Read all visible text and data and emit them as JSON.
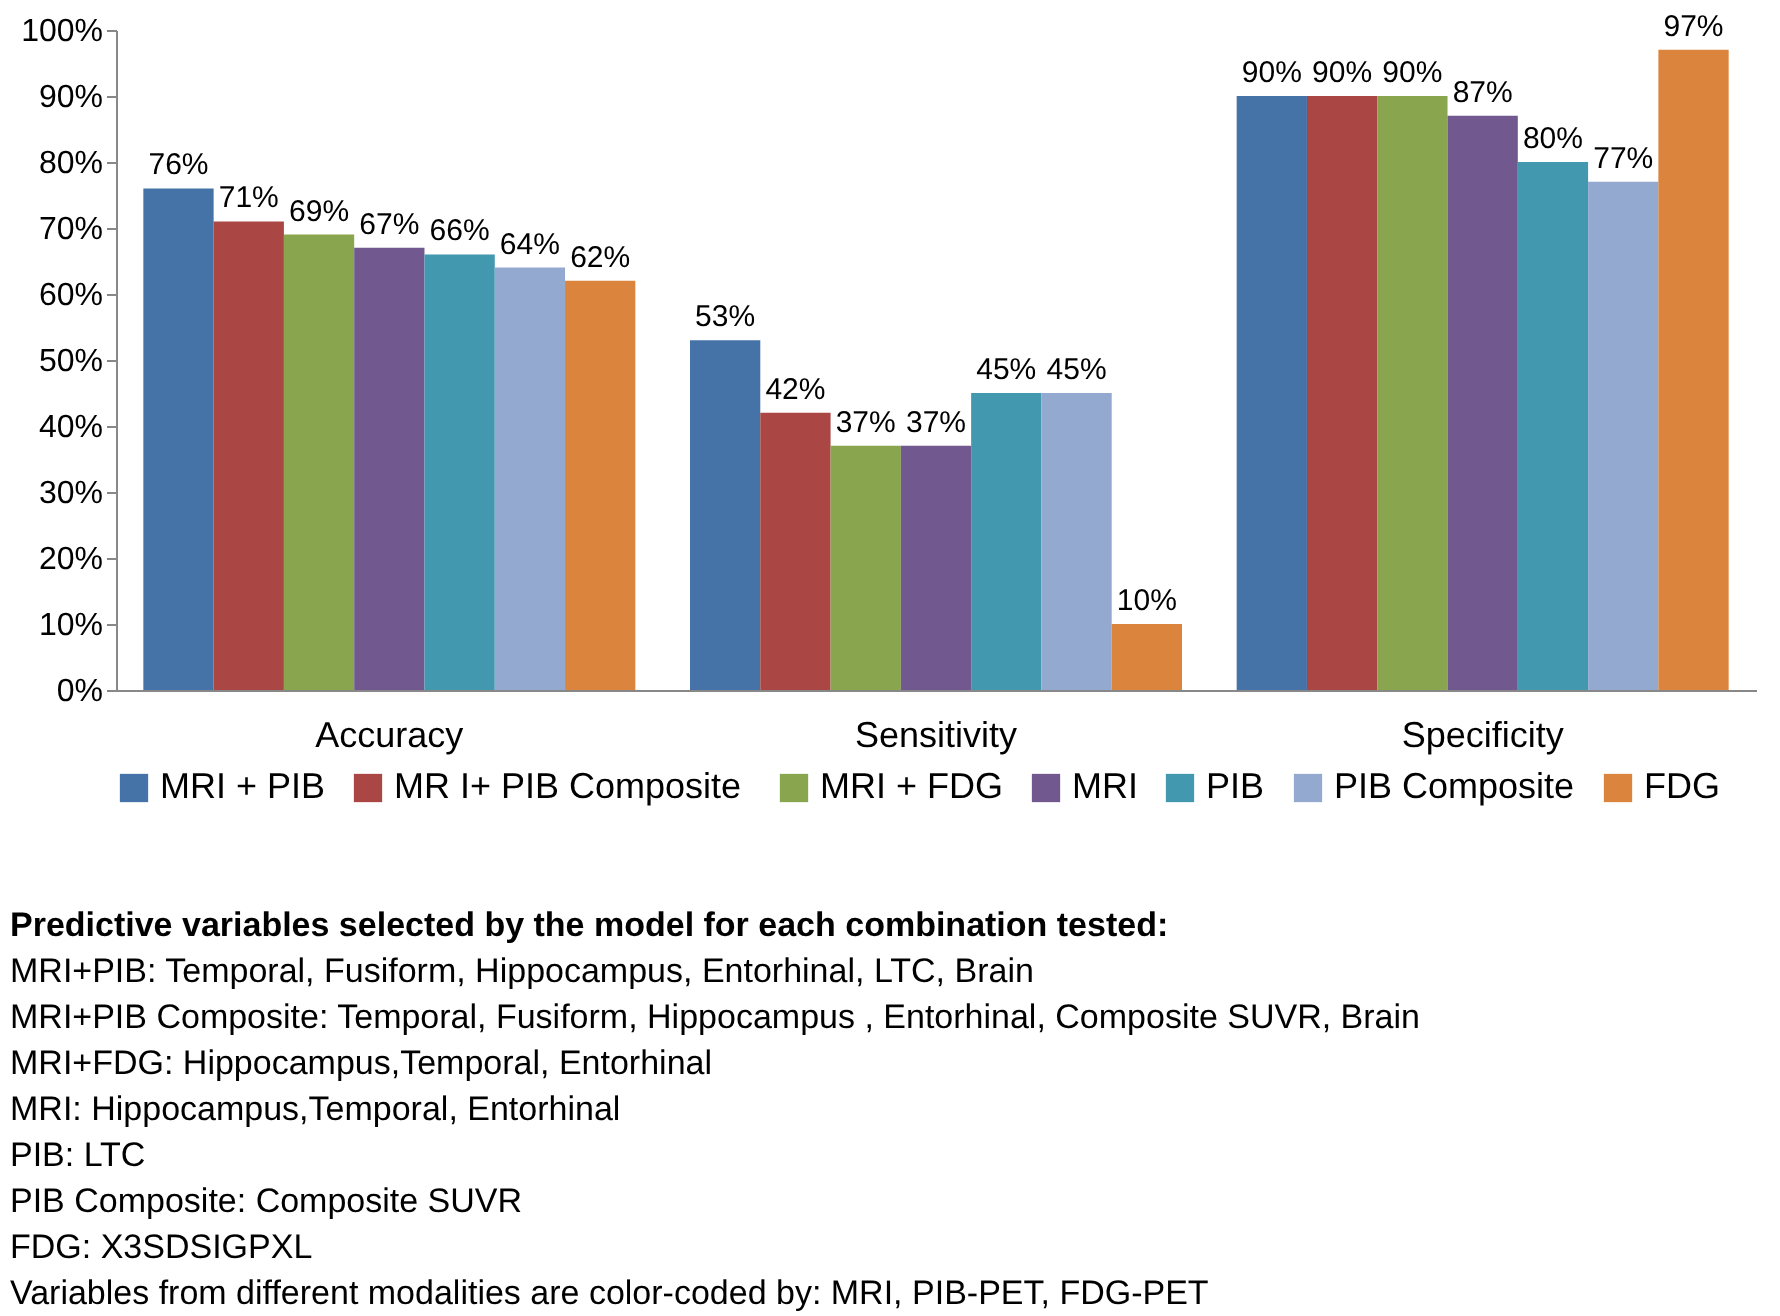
{
  "chart_data": {
    "type": "bar",
    "categories": [
      "Accuracy",
      "Sensitivity",
      "Specificity"
    ],
    "series": [
      {
        "name": "MRI + PIB",
        "color": "#4572a7",
        "values": [
          76,
          53,
          90
        ],
        "value_labels": [
          "76%",
          "53%",
          "90%"
        ]
      },
      {
        "name": "MR I+  PIB Composite",
        "color": "#aa4643",
        "values": [
          71,
          42,
          90
        ],
        "value_labels": [
          "71%",
          "42%",
          "90%"
        ]
      },
      {
        "name": "MRI + FDG",
        "color": "#89a54e",
        "values": [
          69,
          37,
          90
        ],
        "value_labels": [
          "69%",
          "37%",
          "90%"
        ]
      },
      {
        "name": "MRI",
        "color": "#71588f",
        "values": [
          67,
          37,
          87
        ],
        "value_labels": [
          "67%",
          "37%",
          "87%"
        ]
      },
      {
        "name": "PIB",
        "color": "#4198af",
        "values": [
          66,
          45,
          80
        ],
        "value_labels": [
          "66%",
          "45%",
          "80%"
        ]
      },
      {
        "name": "PIB Composite",
        "color": "#93a9cf",
        "values": [
          64,
          45,
          77
        ],
        "value_labels": [
          "64%",
          "45%",
          "77%"
        ]
      },
      {
        "name": "FDG",
        "color": "#db843d",
        "values": [
          62,
          10,
          97
        ],
        "value_labels": [
          "62%",
          "10%",
          "97%"
        ]
      }
    ],
    "ylim": [
      0,
      100
    ],
    "yticks": [
      {
        "value": 0,
        "label": "0%"
      },
      {
        "value": 10,
        "label": "10%"
      },
      {
        "value": 20,
        "label": "20%"
      },
      {
        "value": 30,
        "label": "30%"
      },
      {
        "value": 40,
        "label": "40%"
      },
      {
        "value": 50,
        "label": "50%"
      },
      {
        "value": 60,
        "label": "60%"
      },
      {
        "value": 70,
        "label": "70%"
      },
      {
        "value": 80,
        "label": "80%"
      },
      {
        "value": 90,
        "label": "90%"
      },
      {
        "value": 100,
        "label": "100%"
      }
    ],
    "grid": false,
    "legend": "bottom",
    "annotations": [
      "Predictive variables selected by the model for each combination tested:",
      "MRI+PIB: Temporal, Fusiform, Hippocampus, Entorhinal, LTC, Brain",
      "MRI+PIB Composite: Temporal, Fusiform, Hippocampus , Entorhinal, Composite SUVR, Brain",
      "MRI+FDG: Hippocampus,Temporal, Entorhinal",
      "MRI: Hippocampus,Temporal, Entorhinal",
      "PIB: LTC",
      "PIB Composite: Composite SUVR",
      "FDG: X3SDSIGPXL",
      "Variables from different modalities are color-coded by: MRI, PIB-PET, FDG-PET"
    ]
  }
}
